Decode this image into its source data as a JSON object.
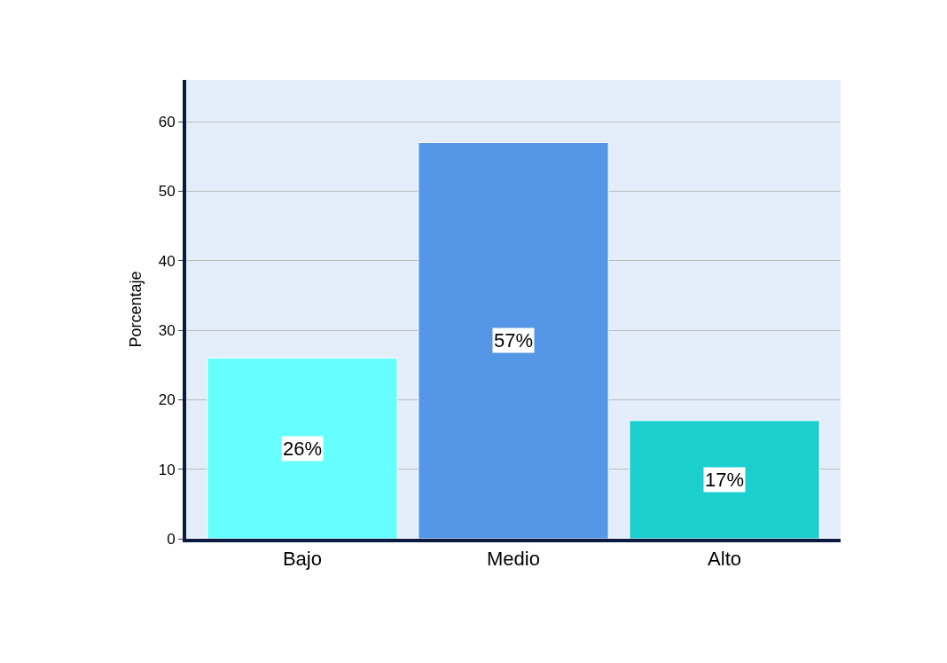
{
  "chart_data": {
    "type": "bar",
    "ylabel": "Porcentaje",
    "categories": [
      "Bajo",
      "Medio",
      "Alto"
    ],
    "values": [
      26,
      57,
      17
    ],
    "colors": [
      "#66ffff",
      "#5596e6",
      "#1ccfcf"
    ],
    "value_labels": [
      "26%",
      "57%",
      "17%"
    ],
    "ylim": [
      0,
      66
    ],
    "yticks": [
      0,
      10,
      20,
      30,
      40,
      50,
      60
    ],
    "grid": "y",
    "legend": false
  }
}
